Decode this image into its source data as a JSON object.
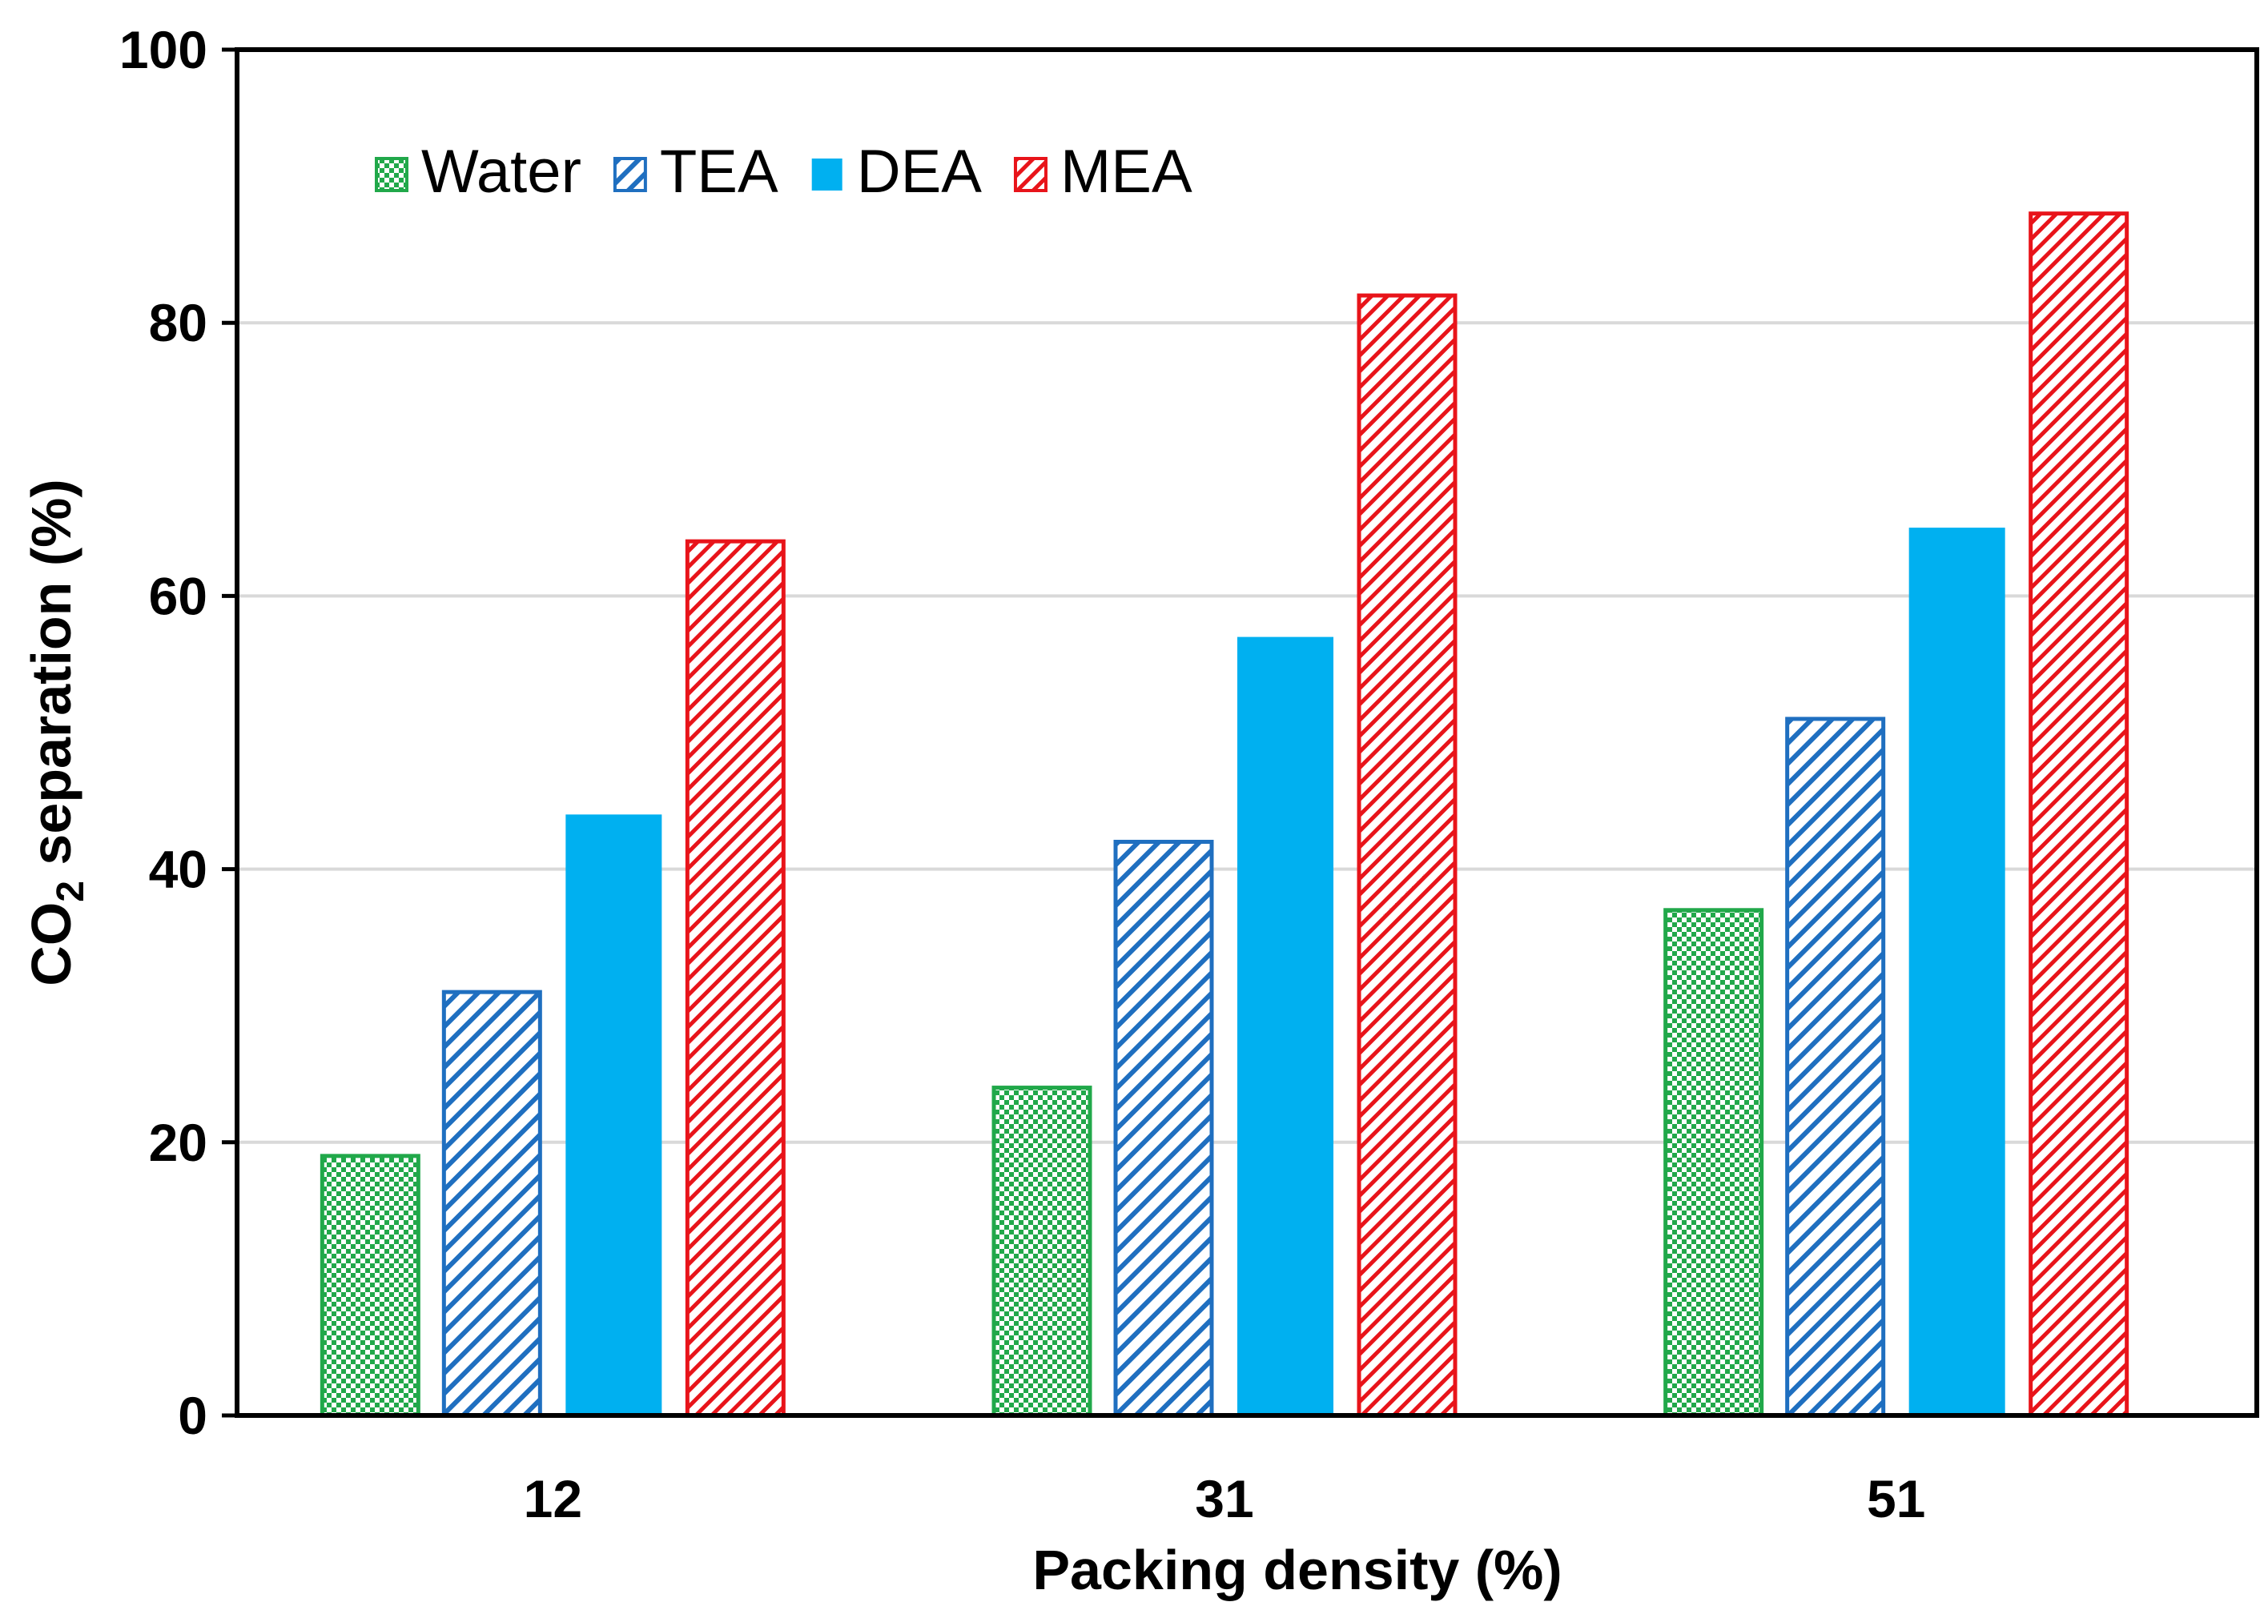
{
  "chart_data": {
    "type": "bar",
    "categories": [
      "12",
      "31",
      "51"
    ],
    "series": [
      {
        "name": "Water",
        "values": [
          19,
          24,
          37
        ],
        "color": "#21A84A",
        "pattern": "checker"
      },
      {
        "name": "TEA",
        "values": [
          31,
          42,
          51
        ],
        "color": "#1F6FC0",
        "pattern": "diagonal"
      },
      {
        "name": "DEA",
        "values": [
          44,
          57,
          65
        ],
        "color": "#00B0F0",
        "pattern": "solid"
      },
      {
        "name": "MEA",
        "values": [
          64,
          82,
          88
        ],
        "color": "#E8141A",
        "pattern": "diagonal-fine"
      }
    ],
    "xlabel": "Packing density (%)",
    "ylabel": {
      "main": "CO",
      "sub": "2",
      "rest": " separation (%)"
    },
    "ylim": [
      0,
      100
    ],
    "yticks": [
      "0",
      "20",
      "40",
      "60",
      "80",
      "100"
    ],
    "grid": true,
    "legend_position": "top-left"
  }
}
